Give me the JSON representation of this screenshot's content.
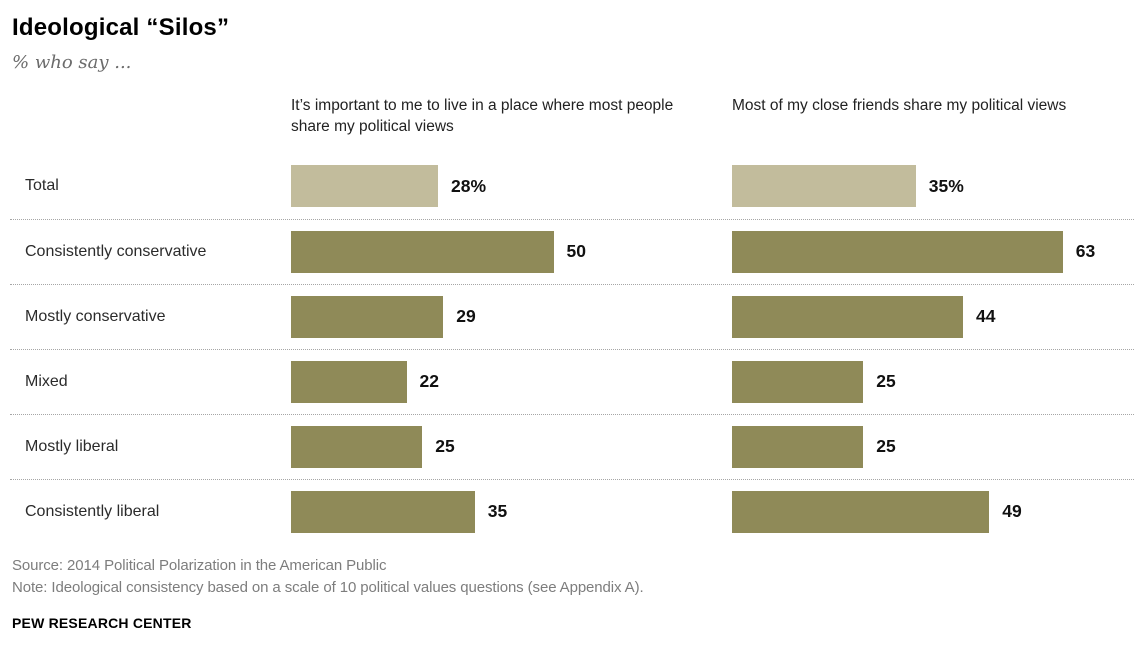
{
  "title": "Ideological “Silos”",
  "subtitle": "% who say ...",
  "columns": [
    "It’s important to me to live in a place where most people share my political views",
    "Most of my close friends share my political views"
  ],
  "rows": [
    {
      "label": "Total",
      "col1_value": 28,
      "col1_label": "28%",
      "col2_value": 35,
      "col2_label": "35%"
    },
    {
      "label": "Consistently conservative",
      "col1_value": 50,
      "col1_label": "50",
      "col2_value": 63,
      "col2_label": "63"
    },
    {
      "label": "Mostly conservative",
      "col1_value": 29,
      "col1_label": "29",
      "col2_value": 44,
      "col2_label": "44"
    },
    {
      "label": "Mixed",
      "col1_value": 22,
      "col1_label": "22",
      "col2_value": 25,
      "col2_label": "25"
    },
    {
      "label": "Mostly liberal",
      "col1_value": 25,
      "col1_label": "25",
      "col2_value": 25,
      "col2_label": "25"
    },
    {
      "label": "Consistently liberal",
      "col1_value": 35,
      "col1_label": "35",
      "col2_value": 49,
      "col2_label": "49"
    }
  ],
  "colors": {
    "bar_dark": "#8f8a58",
    "bar_light": "#c2bc9c"
  },
  "footer": {
    "source": "Source: 2014 Political Polarization in the American Public",
    "note": "Note: Ideological consistency based on a scale of 10 political values questions (see Appendix A).",
    "brand": "PEW RESEARCH CENTER"
  },
  "chart_data": {
    "type": "bar",
    "orientation": "horizontal",
    "title": "Ideological “Silos”",
    "subtitle": "% who say ...",
    "unit": "%",
    "categories": [
      "Total",
      "Consistently conservative",
      "Mostly conservative",
      "Mixed",
      "Mostly liberal",
      "Consistently liberal"
    ],
    "series": [
      {
        "name": "It’s important to me to live in a place where most people share my political views",
        "values": [
          28,
          50,
          29,
          22,
          25,
          35
        ]
      },
      {
        "name": "Most of my close friends share my political views",
        "values": [
          35,
          63,
          44,
          25,
          25,
          49
        ]
      }
    ],
    "xlim": [
      0,
      70
    ],
    "grid": false,
    "legend_position": "column-headers",
    "highlight_category": "Total",
    "separator_style": "dotted"
  }
}
